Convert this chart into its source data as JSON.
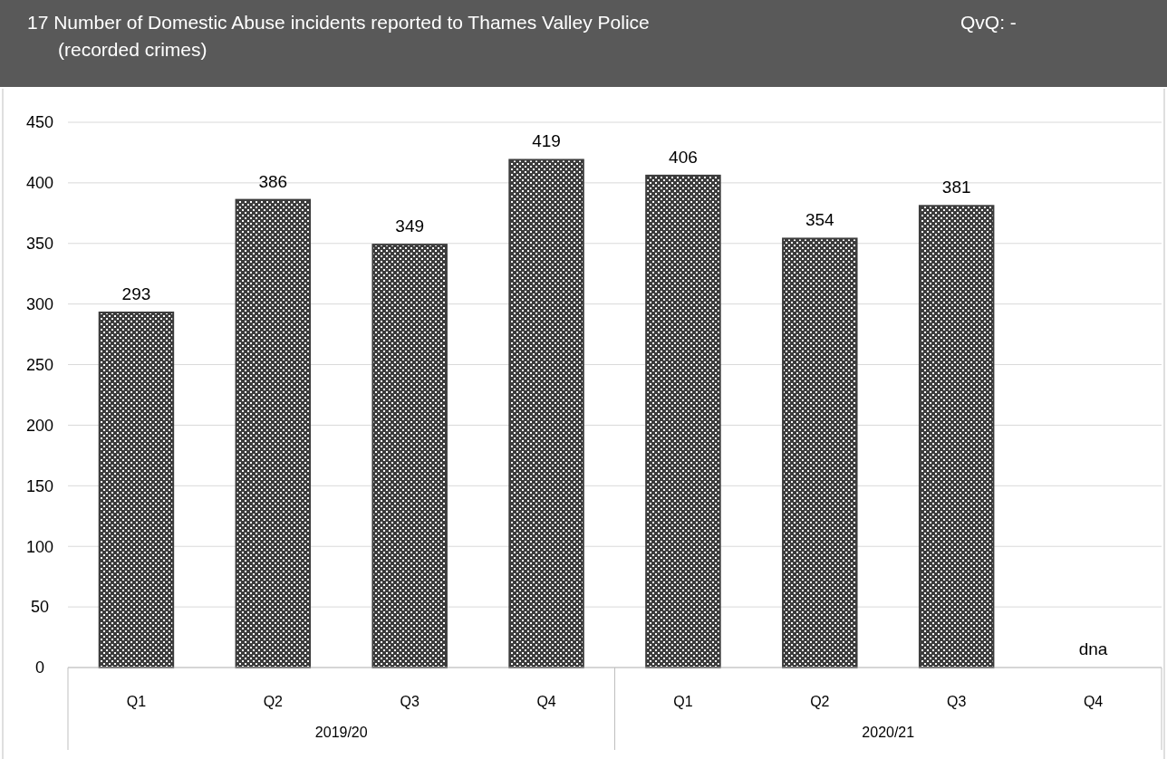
{
  "chart_data": {
    "type": "bar",
    "title": "17  Number of Domestic Abuse incidents reported to Thames Valley Police\n(recorded crimes)",
    "categories": [
      "Q1",
      "Q2",
      "Q3",
      "Q4",
      "Q1",
      "Q2",
      "Q3",
      "Q4"
    ],
    "values": [
      293,
      386,
      349,
      419,
      406,
      354,
      381,
      null
    ],
    "value_labels": [
      "293",
      "386",
      "349",
      "419",
      "406",
      "354",
      "381",
      "dna"
    ],
    "color": "#3c3c3c",
    "ylim": [
      0,
      450
    ],
    "yticks": [
      0,
      50,
      100,
      150,
      200,
      250,
      300,
      350,
      400,
      450
    ],
    "grid": "y",
    "annotations": [
      "QvQ: -",
      "2019/20",
      "2020/21"
    ]
  }
}
